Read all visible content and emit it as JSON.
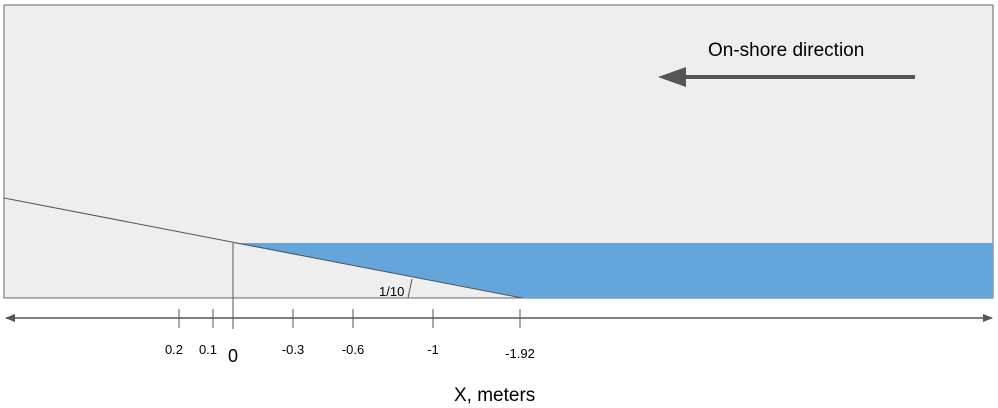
{
  "diagram": {
    "direction_label": "On-shore direction",
    "slope_label": "1/10",
    "axis_label": "X, meters",
    "ticks": [
      {
        "value": 0.2,
        "label": "0.2"
      },
      {
        "value": 0.1,
        "label": "0.1"
      },
      {
        "value": 0,
        "label": "0"
      },
      {
        "value": -0.3,
        "label": "-0.3"
      },
      {
        "value": -0.6,
        "label": "-0.6"
      },
      {
        "value": -1,
        "label": "-1"
      },
      {
        "value": -1.92,
        "label": "-1.92"
      }
    ],
    "colors": {
      "domain_fill": "#eeeeee",
      "water": "#64a5dc",
      "outline": "#555555",
      "arrow": "#555555"
    }
  }
}
